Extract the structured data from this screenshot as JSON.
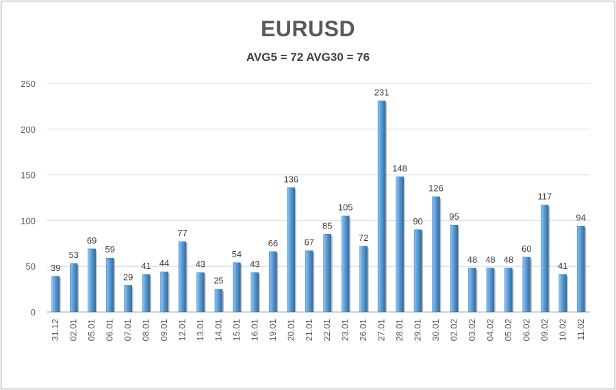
{
  "chart_data": {
    "type": "bar",
    "title": "EURUSD",
    "subtitle": "AVG5 = 72 AVG30 = 76",
    "categories": [
      "31.12",
      "02.01",
      "05.01",
      "06.01",
      "07.01",
      "08.01",
      "09.01",
      "12.01",
      "13.01",
      "14.01",
      "15.01",
      "16.01",
      "19.01",
      "20.01",
      "21.01",
      "22.01",
      "23.01",
      "26.01",
      "27.01",
      "28.01",
      "29.01",
      "30.01",
      "02.02",
      "03.02",
      "04.02",
      "05.02",
      "06.02",
      "09.02",
      "10.02",
      "11.02"
    ],
    "values": [
      39,
      53,
      69,
      59,
      29,
      41,
      44,
      77,
      43,
      25,
      54,
      43,
      66,
      136,
      67,
      85,
      105,
      72,
      231,
      148,
      90,
      126,
      95,
      48,
      48,
      48,
      60,
      117,
      41,
      94
    ],
    "ylim": [
      0,
      250
    ],
    "yticks": [
      0,
      50,
      100,
      150,
      200,
      250
    ],
    "grid": true,
    "legend": "none",
    "bar_color": "#5b9bd5",
    "bar_color_light": "#9dc3e6",
    "bar_color_dark": "#2e6da4"
  }
}
